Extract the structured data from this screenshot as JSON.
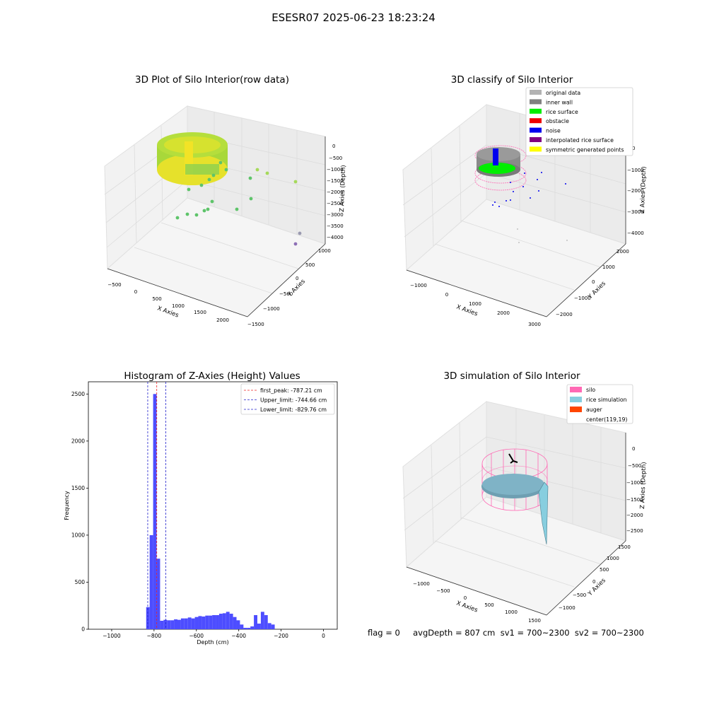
{
  "suptitle": "ESESR07 2025-06-23 18:23:24",
  "status_line": "flag = 0     avgDepth = 807 cm  sv1 = 700~2300  sv2 = 700~2300",
  "chart_data": [
    {
      "type": "scatter3d",
      "title": "3D Plot of Silo Interior(row data)",
      "xlabel": "X Axies",
      "ylabel": "Y Axies",
      "zlabel": "Z Axies (Depth)",
      "x_ticks": [
        "−500",
        "0",
        "500",
        "1000",
        "1500",
        "2000"
      ],
      "y_ticks": [
        "−1500",
        "−1000",
        "−500",
        "0",
        "500",
        "1000"
      ],
      "z_ticks": [
        "0",
        "−500",
        "−1000",
        "−1500",
        "−2000",
        "−2500",
        "−3000",
        "−3500",
        "−4000"
      ],
      "colormap": "viridis-like (green-yellow surface ring, teal/purple stray points)"
    },
    {
      "type": "scatter3d",
      "title": "3D classify of Silo Interior",
      "xlabel": "X Axies",
      "ylabel": "Y Axies",
      "zlabel": "Z Axies (Depth)",
      "x_ticks": [
        "−1000",
        "0",
        "1000",
        "2000",
        "3000"
      ],
      "y_ticks": [
        "−2000",
        "−1000",
        "0",
        "1000",
        "2000"
      ],
      "z_ticks": [
        "0",
        "−1000",
        "−2000",
        "−3000",
        "−4000"
      ],
      "legend_position": "top-right",
      "legend": [
        {
          "label": "original data",
          "color": "#b3b3b3"
        },
        {
          "label": "inner wall",
          "color": "#808080"
        },
        {
          "label": "rice surface",
          "color": "#00ee00"
        },
        {
          "label": "obstacle",
          "color": "#ee0000"
        },
        {
          "label": "noise",
          "color": "#0000ee"
        },
        {
          "label": "interpolated rice surface",
          "color": "#800080"
        },
        {
          "label": "symmetric generated points",
          "color": "#ffff00"
        }
      ]
    },
    {
      "type": "bar",
      "title": "Histogram of Z-Axies (Height) Values",
      "xlabel": "Depth (cm)",
      "ylabel": "Frequency",
      "xlim": [
        -1110,
        65
      ],
      "ylim": [
        0,
        2630
      ],
      "x_ticks": [
        -1000,
        -800,
        -600,
        -400,
        -200,
        0
      ],
      "x_tick_labels": [
        "−1000",
        "−800",
        "−600",
        "−400",
        "−200",
        "0"
      ],
      "y_ticks": [
        0,
        500,
        1000,
        1500,
        2000,
        2500
      ],
      "bar_color": "#4d4dff",
      "bin_start": -837,
      "bin_width": 16.4,
      "values": [
        235,
        1000,
        2500,
        750,
        90,
        100,
        95,
        95,
        105,
        100,
        115,
        115,
        125,
        115,
        130,
        140,
        135,
        145,
        145,
        150,
        150,
        165,
        170,
        185,
        165,
        130,
        95,
        50,
        15,
        15,
        30,
        150,
        60,
        185,
        150,
        65,
        50
      ],
      "vlines": [
        {
          "x": -787.21,
          "color": "#ee2222",
          "label": "first_peak: -787.21 cm"
        },
        {
          "x": -744.66,
          "color": "#2222cc",
          "label": "Upper_limit: -744.66 cm"
        },
        {
          "x": -829.76,
          "color": "#2222cc",
          "label": "Lower_limit: -829.76 cm"
        }
      ],
      "legend_position": "top-right"
    },
    {
      "type": "surface3d",
      "title": "3D simulation of Silo Interior",
      "xlabel": "X Axies",
      "ylabel": "Y Axies",
      "zlabel": "Z Axies (Depth)",
      "x_ticks": [
        "−1000",
        "−500",
        "0",
        "500",
        "1000",
        "1500"
      ],
      "y_ticks": [
        "−1000",
        "−500",
        "0",
        "500",
        "1000",
        "1500"
      ],
      "z_ticks": [
        "0",
        "−500",
        "−1000",
        "−1500",
        "−2000",
        "−2500"
      ],
      "legend_position": "top-right",
      "legend": [
        {
          "label": "silo",
          "color": "#ff69b4"
        },
        {
          "label": "rice simulation",
          "color": "#87cedf"
        },
        {
          "label": "auger",
          "color": "#ff4500"
        },
        {
          "label": "center(119,19)",
          "color": ""
        }
      ]
    }
  ]
}
